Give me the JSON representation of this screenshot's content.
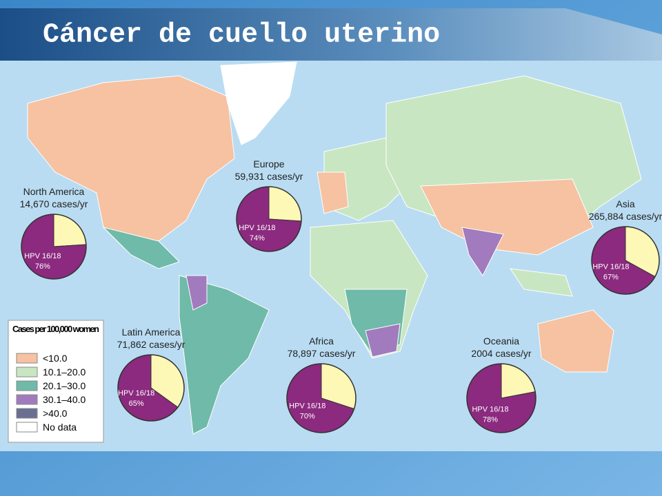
{
  "title": "Cáncer de cuello uterino",
  "regions": [
    {
      "name": "North America",
      "cases": "14,670 cases/yr",
      "hpv_label": "HPV 16/18",
      "hpv_share": 76,
      "hpv_share_label": "76%"
    },
    {
      "name": "Europe",
      "cases": "59,931 cases/yr",
      "hpv_label": "HPV 16/18",
      "hpv_share": 74,
      "hpv_share_label": "74%"
    },
    {
      "name": "Latin America",
      "cases": "71,862 cases/yr",
      "hpv_label": "HPV 16/18",
      "hpv_share": 65,
      "hpv_share_label": "65%"
    },
    {
      "name": "Africa",
      "cases": "78,897 cases/yr",
      "hpv_label": "HPV 16/18",
      "hpv_share": 70,
      "hpv_share_label": "70%"
    },
    {
      "name": "Oceania",
      "cases": "2004 cases/yr",
      "hpv_label": "HPV 16/18",
      "hpv_share": 78,
      "hpv_share_label": "78%"
    },
    {
      "name": "Asia",
      "cases": "265,884 cases/yr",
      "hpv_label": "HPV 16/18",
      "hpv_share": 67,
      "hpv_share_label": "67%"
    }
  ],
  "hpv_color": "#8b2a7e",
  "other_color": "#fdf8b5",
  "legend": {
    "title": "Cases per 100,000 women",
    "items": [
      {
        "label": "<10.0",
        "color": "#f6c2a2"
      },
      {
        "label": "10.1–20.0",
        "color": "#c9e6c2"
      },
      {
        "label": "20.1–30.0",
        "color": "#6fbaa8"
      },
      {
        "label": "30.1–40.0",
        "color": "#a17bbd"
      },
      {
        "label": ">40.0",
        "color": "#6a6f92"
      },
      {
        "label": "No data",
        "color": "#ffffff"
      }
    ]
  }
}
